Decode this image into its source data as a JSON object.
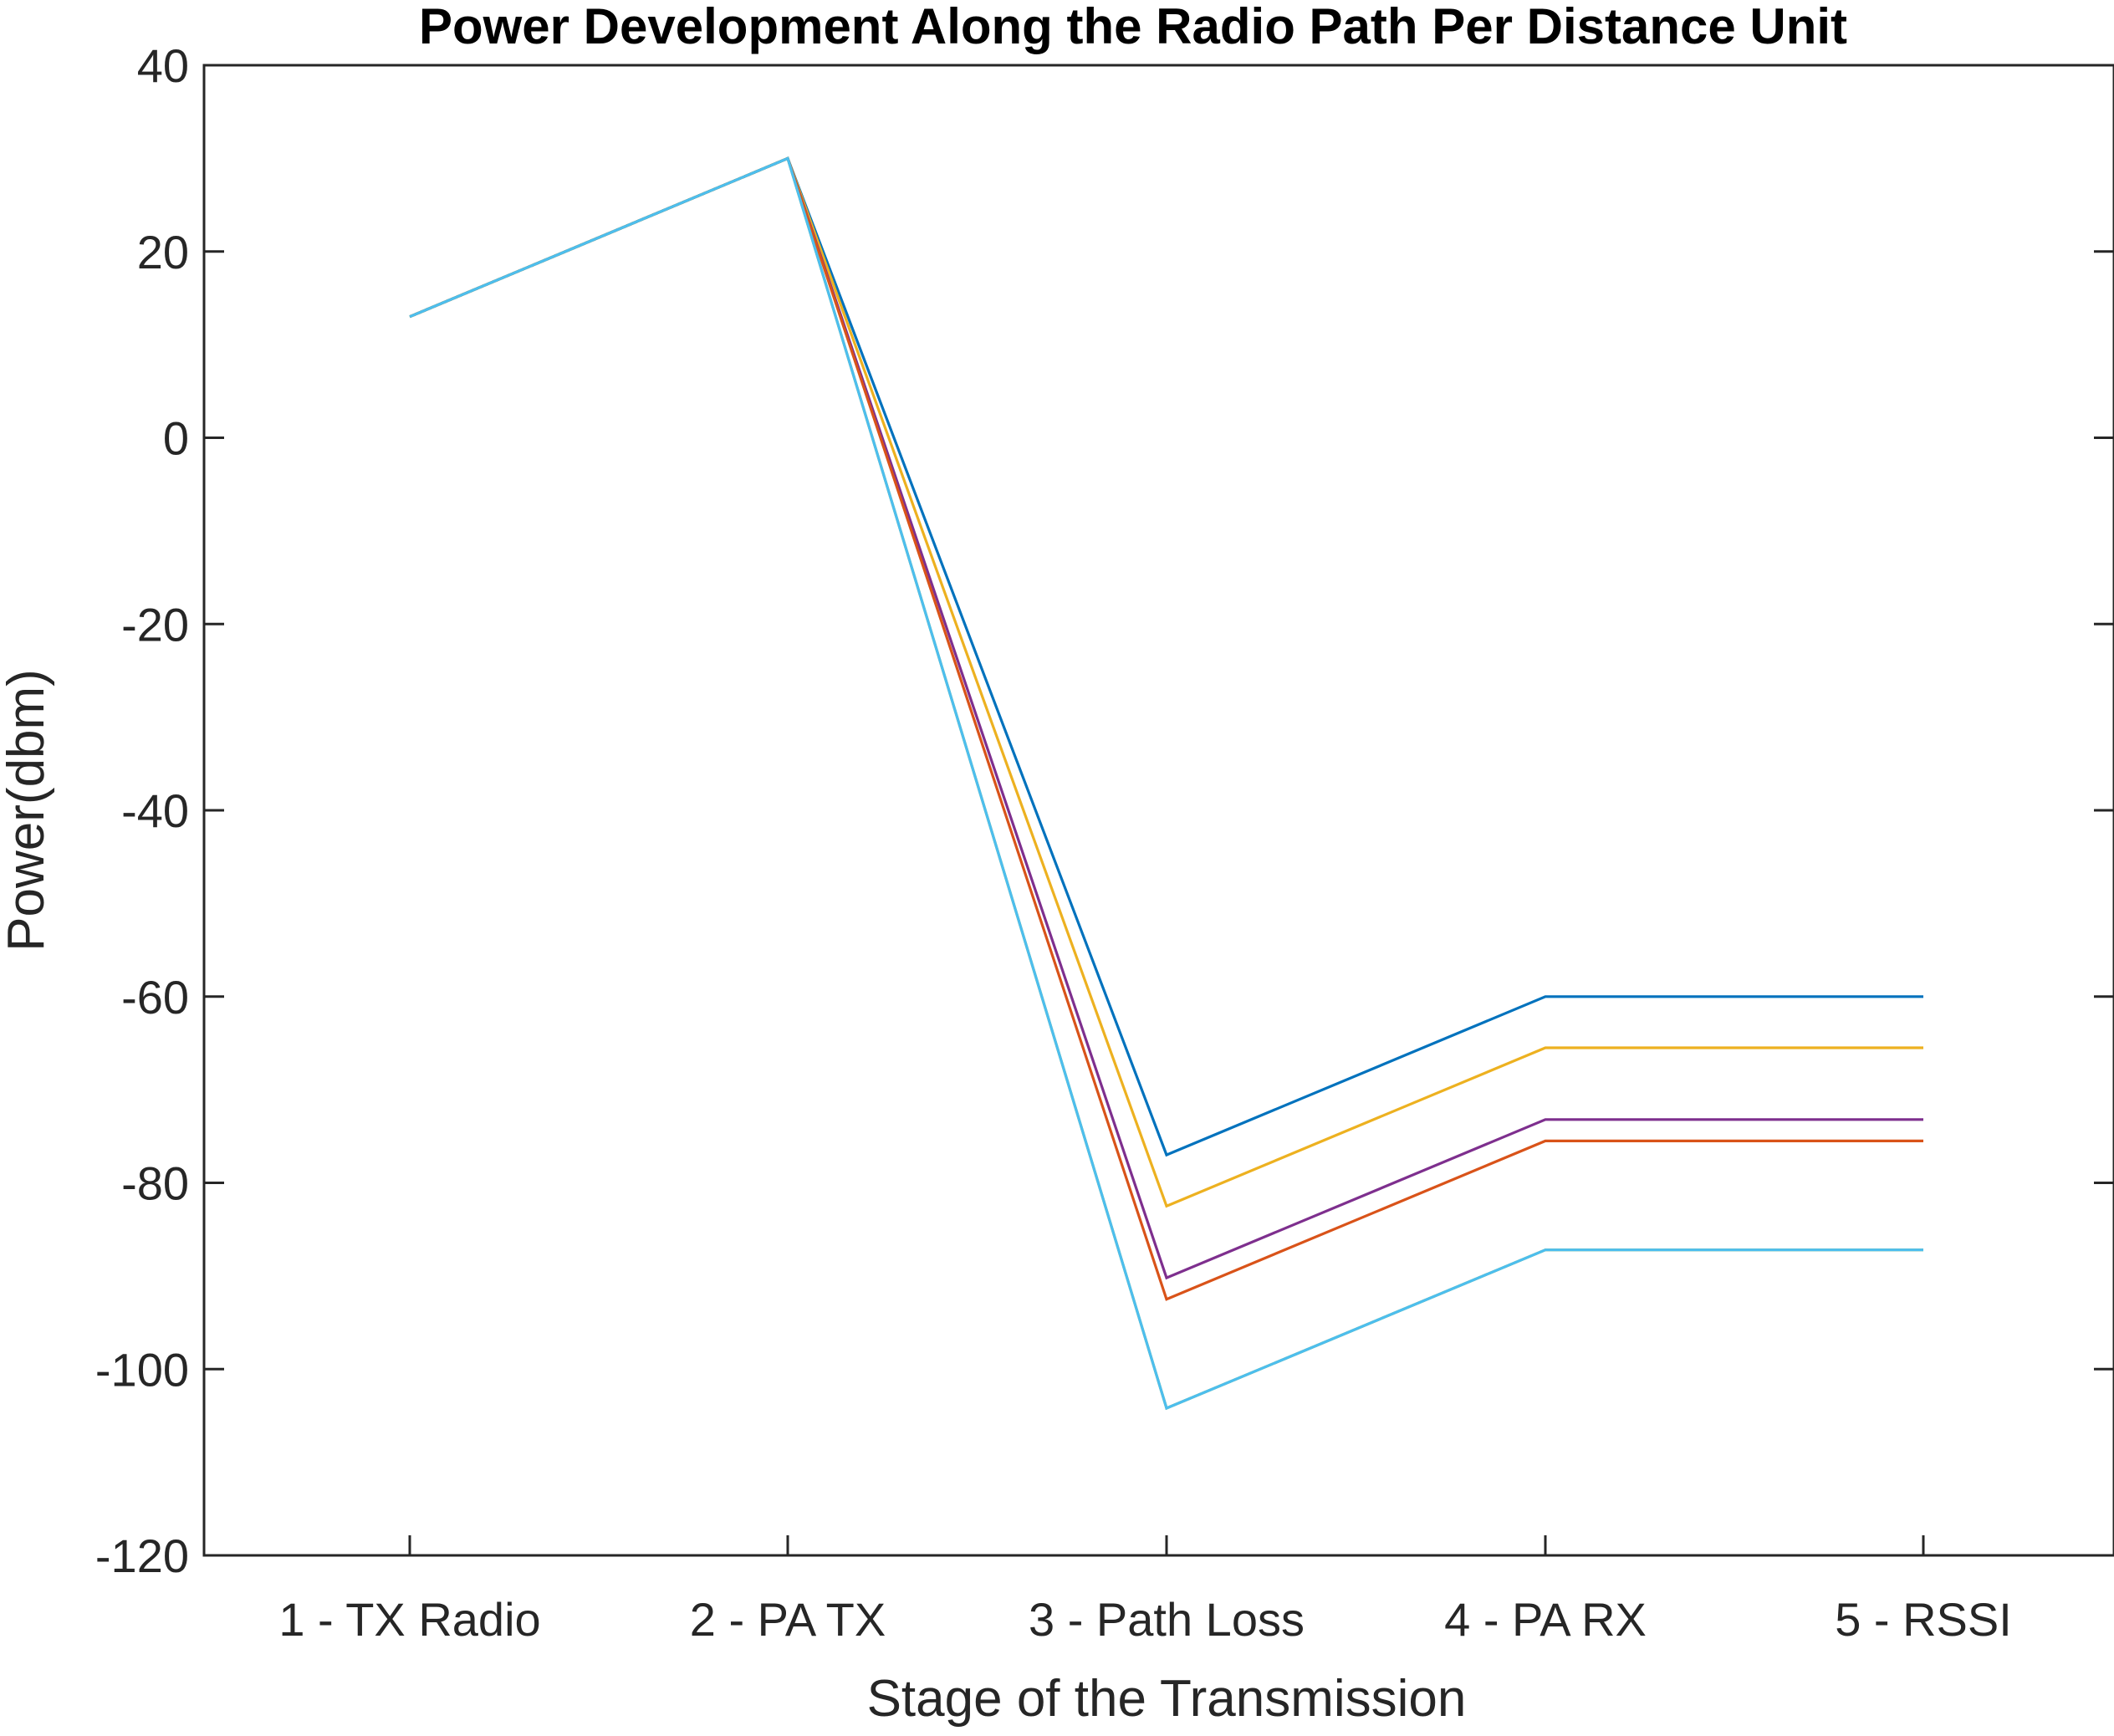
{
  "chart_data": {
    "type": "line",
    "title": "Power Development Along the Radio Path Per Distance Unit",
    "xlabel": "Stage of the Transmission",
    "ylabel": "Power(dbm)",
    "categories": [
      "1 - TX Radio",
      "2 - PA TX",
      "3 - Path Loss",
      "4 - PA RX",
      "5 - RSSI"
    ],
    "ylim": [
      -120,
      40
    ],
    "yticks": [
      40,
      20,
      0,
      -20,
      -40,
      -60,
      -80,
      -100,
      -120
    ],
    "yticklabels": [
      "40",
      "20",
      "0",
      "-20",
      "-40",
      "-60",
      "-80",
      "-100",
      "-120"
    ],
    "grid": false,
    "legend": "none",
    "series": [
      {
        "color": "#0072BD",
        "values": [
          13,
          30,
          -77,
          -60,
          -60
        ]
      },
      {
        "color": "#EDB120",
        "values": [
          13,
          30,
          -82.5,
          -65.5,
          -65.5
        ]
      },
      {
        "color": "#7E2F8E",
        "values": [
          13,
          30,
          -90.2,
          -73.2,
          -73.2
        ]
      },
      {
        "color": "#D95319",
        "values": [
          13,
          30,
          -92.5,
          -75.5,
          -75.5
        ]
      },
      {
        "color": "#77AC30",
        "values": [
          13,
          30,
          -104.2,
          -87.2,
          -87.2
        ]
      },
      {
        "color": "#4DBEEE",
        "values": [
          13,
          30,
          -104.2,
          -87.2,
          -87.2
        ]
      }
    ]
  }
}
